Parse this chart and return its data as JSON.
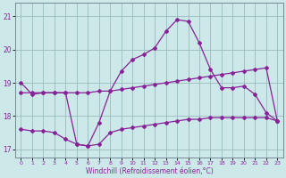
{
  "xlabel": "Windchill (Refroidissement éolien,°C)",
  "xlim": [
    -0.5,
    23.5
  ],
  "ylim": [
    16.75,
    21.4
  ],
  "yticks": [
    17,
    18,
    19,
    20,
    21
  ],
  "xticks": [
    0,
    1,
    2,
    3,
    4,
    5,
    6,
    7,
    8,
    9,
    10,
    11,
    12,
    13,
    14,
    15,
    16,
    17,
    18,
    19,
    20,
    21,
    22,
    23
  ],
  "bg_color": "#cce8e8",
  "line_color": "#882299",
  "grid_color": "#99bbbb",
  "hours": [
    0,
    1,
    2,
    3,
    4,
    5,
    6,
    7,
    8,
    9,
    10,
    11,
    12,
    13,
    14,
    15,
    16,
    17,
    18,
    19,
    20,
    21,
    22,
    23
  ],
  "line_peak": [
    19.0,
    18.65,
    18.7,
    18.7,
    18.7,
    17.15,
    17.1,
    17.8,
    18.75,
    19.35,
    19.7,
    19.85,
    20.05,
    20.55,
    20.9,
    20.85,
    20.2,
    19.4,
    18.85,
    18.85,
    18.9,
    18.65,
    18.1,
    17.85
  ],
  "line_mid": [
    18.7,
    18.7,
    18.7,
    18.7,
    18.7,
    18.7,
    18.7,
    18.75,
    18.75,
    18.8,
    18.85,
    18.9,
    18.95,
    19.0,
    19.05,
    19.1,
    19.15,
    19.2,
    19.25,
    19.3,
    19.35,
    19.4,
    19.45,
    17.85
  ],
  "line_low": [
    17.6,
    17.55,
    17.55,
    17.5,
    17.3,
    17.15,
    17.1,
    17.15,
    17.5,
    17.6,
    17.65,
    17.7,
    17.75,
    17.8,
    17.85,
    17.9,
    17.9,
    17.95,
    17.95,
    17.95,
    17.95,
    17.95,
    17.95,
    17.85
  ]
}
